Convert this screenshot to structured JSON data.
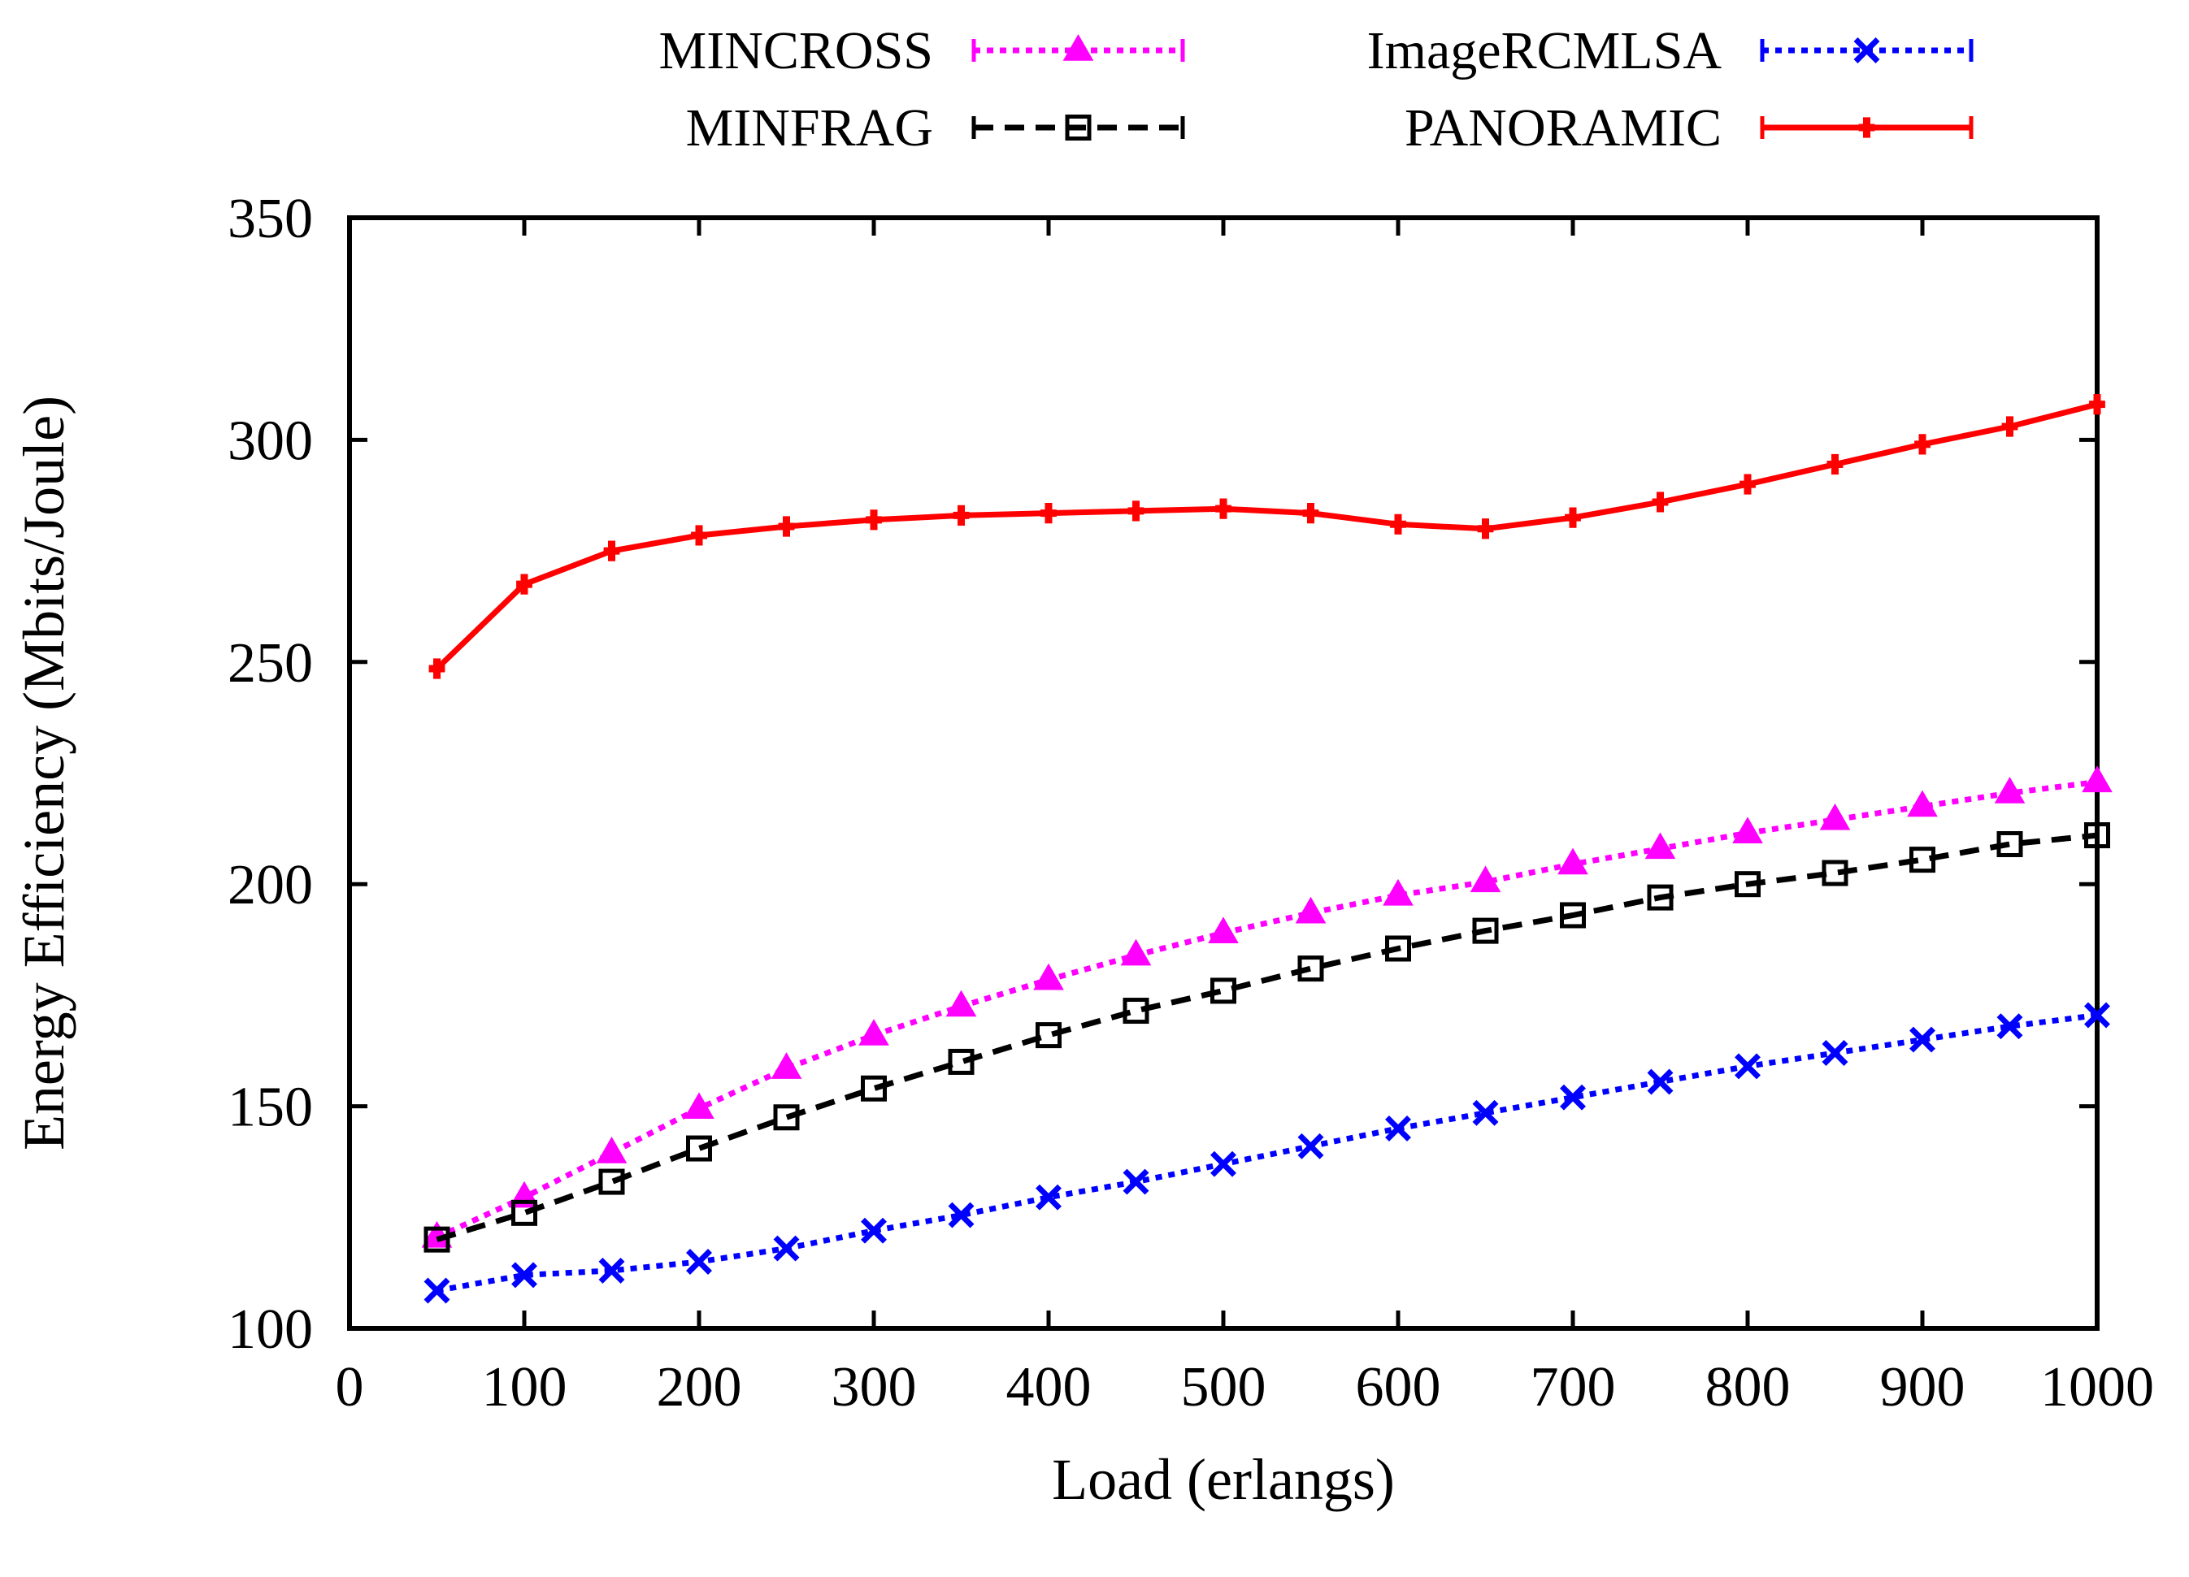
{
  "chart_data": {
    "type": "line",
    "title": "",
    "xlabel": "Load (erlangs)",
    "ylabel": "Energy Efficiency (Mbits/Joule)",
    "xlim": [
      0,
      1000
    ],
    "ylim": [
      100,
      350
    ],
    "xticks": [
      0,
      100,
      200,
      300,
      400,
      500,
      600,
      700,
      800,
      900,
      1000
    ],
    "yticks": [
      100,
      150,
      200,
      250,
      300,
      350
    ],
    "grid": false,
    "legend_position": "top (outside plot, two columns)",
    "x": [
      50,
      100,
      150,
      200,
      250,
      300,
      350,
      400,
      450,
      500,
      550,
      600,
      650,
      700,
      750,
      800,
      850,
      900,
      950,
      1000
    ],
    "series": [
      {
        "name": "MINCROSS",
        "color": "#ff00ff",
        "dash": "dotted",
        "marker": "filled-triangle",
        "values": [
          120.5,
          129.5,
          139.5,
          149.5,
          158.5,
          166,
          172.5,
          178.5,
          184,
          189,
          193.5,
          197.5,
          200.5,
          204.5,
          208,
          211.5,
          214.5,
          217.5,
          220.5,
          223
        ]
      },
      {
        "name": "MINFRAG",
        "color": "#000000",
        "dash": "dashed",
        "marker": "open-square",
        "values": [
          120,
          126,
          133,
          140.5,
          147.5,
          154,
          160,
          166,
          171.5,
          176,
          181,
          185.5,
          189.5,
          193,
          197,
          200,
          202.5,
          205.5,
          209,
          211
        ]
      },
      {
        "name": "ImageRCMLSA",
        "color": "#0000ff",
        "dash": "dotted",
        "marker": "x-cross",
        "values": [
          108.5,
          112,
          113,
          115,
          118,
          122,
          125.5,
          129.5,
          133,
          137,
          141,
          145,
          148.5,
          152,
          155.5,
          159,
          162,
          165,
          168,
          170.5
        ]
      },
      {
        "name": "PANORAMIC",
        "color": "#ff0000",
        "dash": "solid",
        "marker": "short-tick",
        "values": [
          248.5,
          267.5,
          275,
          278.5,
          280.5,
          282,
          283,
          283.5,
          284,
          284.5,
          283.5,
          281,
          280,
          282.5,
          286,
          290,
          294.5,
          299,
          303,
          308
        ]
      }
    ]
  }
}
